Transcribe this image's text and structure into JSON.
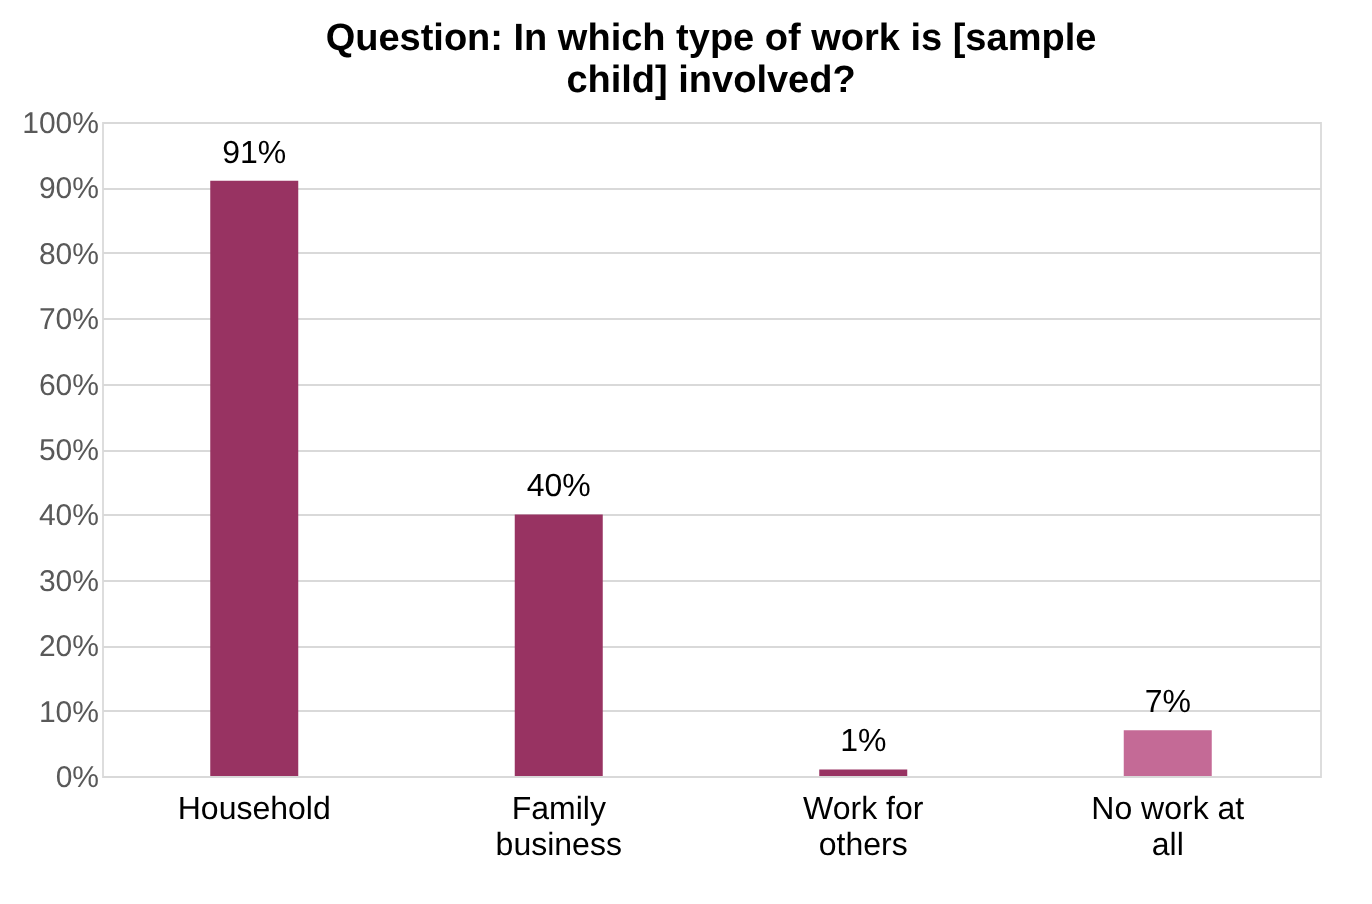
{
  "chart_data": {
    "type": "bar",
    "title": "Question: In which type of work is [sample child]  involved?",
    "categories": [
      "Household",
      "Family business",
      "Work for others",
      "No work at all"
    ],
    "values": [
      91,
      40,
      1,
      7
    ],
    "colors": [
      "#983362",
      "#983362",
      "#983362",
      "#c46a96"
    ],
    "value_labels": [
      "91%",
      "40%",
      "1%",
      "7%"
    ],
    "ylim": [
      0,
      100
    ],
    "yticks": [
      {
        "value": 0,
        "label": "0%"
      },
      {
        "value": 10,
        "label": "10%"
      },
      {
        "value": 20,
        "label": "20%"
      },
      {
        "value": 30,
        "label": "30%"
      },
      {
        "value": 40,
        "label": "40%"
      },
      {
        "value": 50,
        "label": "50%"
      },
      {
        "value": 60,
        "label": "60%"
      },
      {
        "value": 70,
        "label": "70%"
      },
      {
        "value": 80,
        "label": "80%"
      },
      {
        "value": 90,
        "label": "90%"
      },
      {
        "value": 100,
        "label": "100%"
      }
    ],
    "grid": "y",
    "legend": false
  }
}
